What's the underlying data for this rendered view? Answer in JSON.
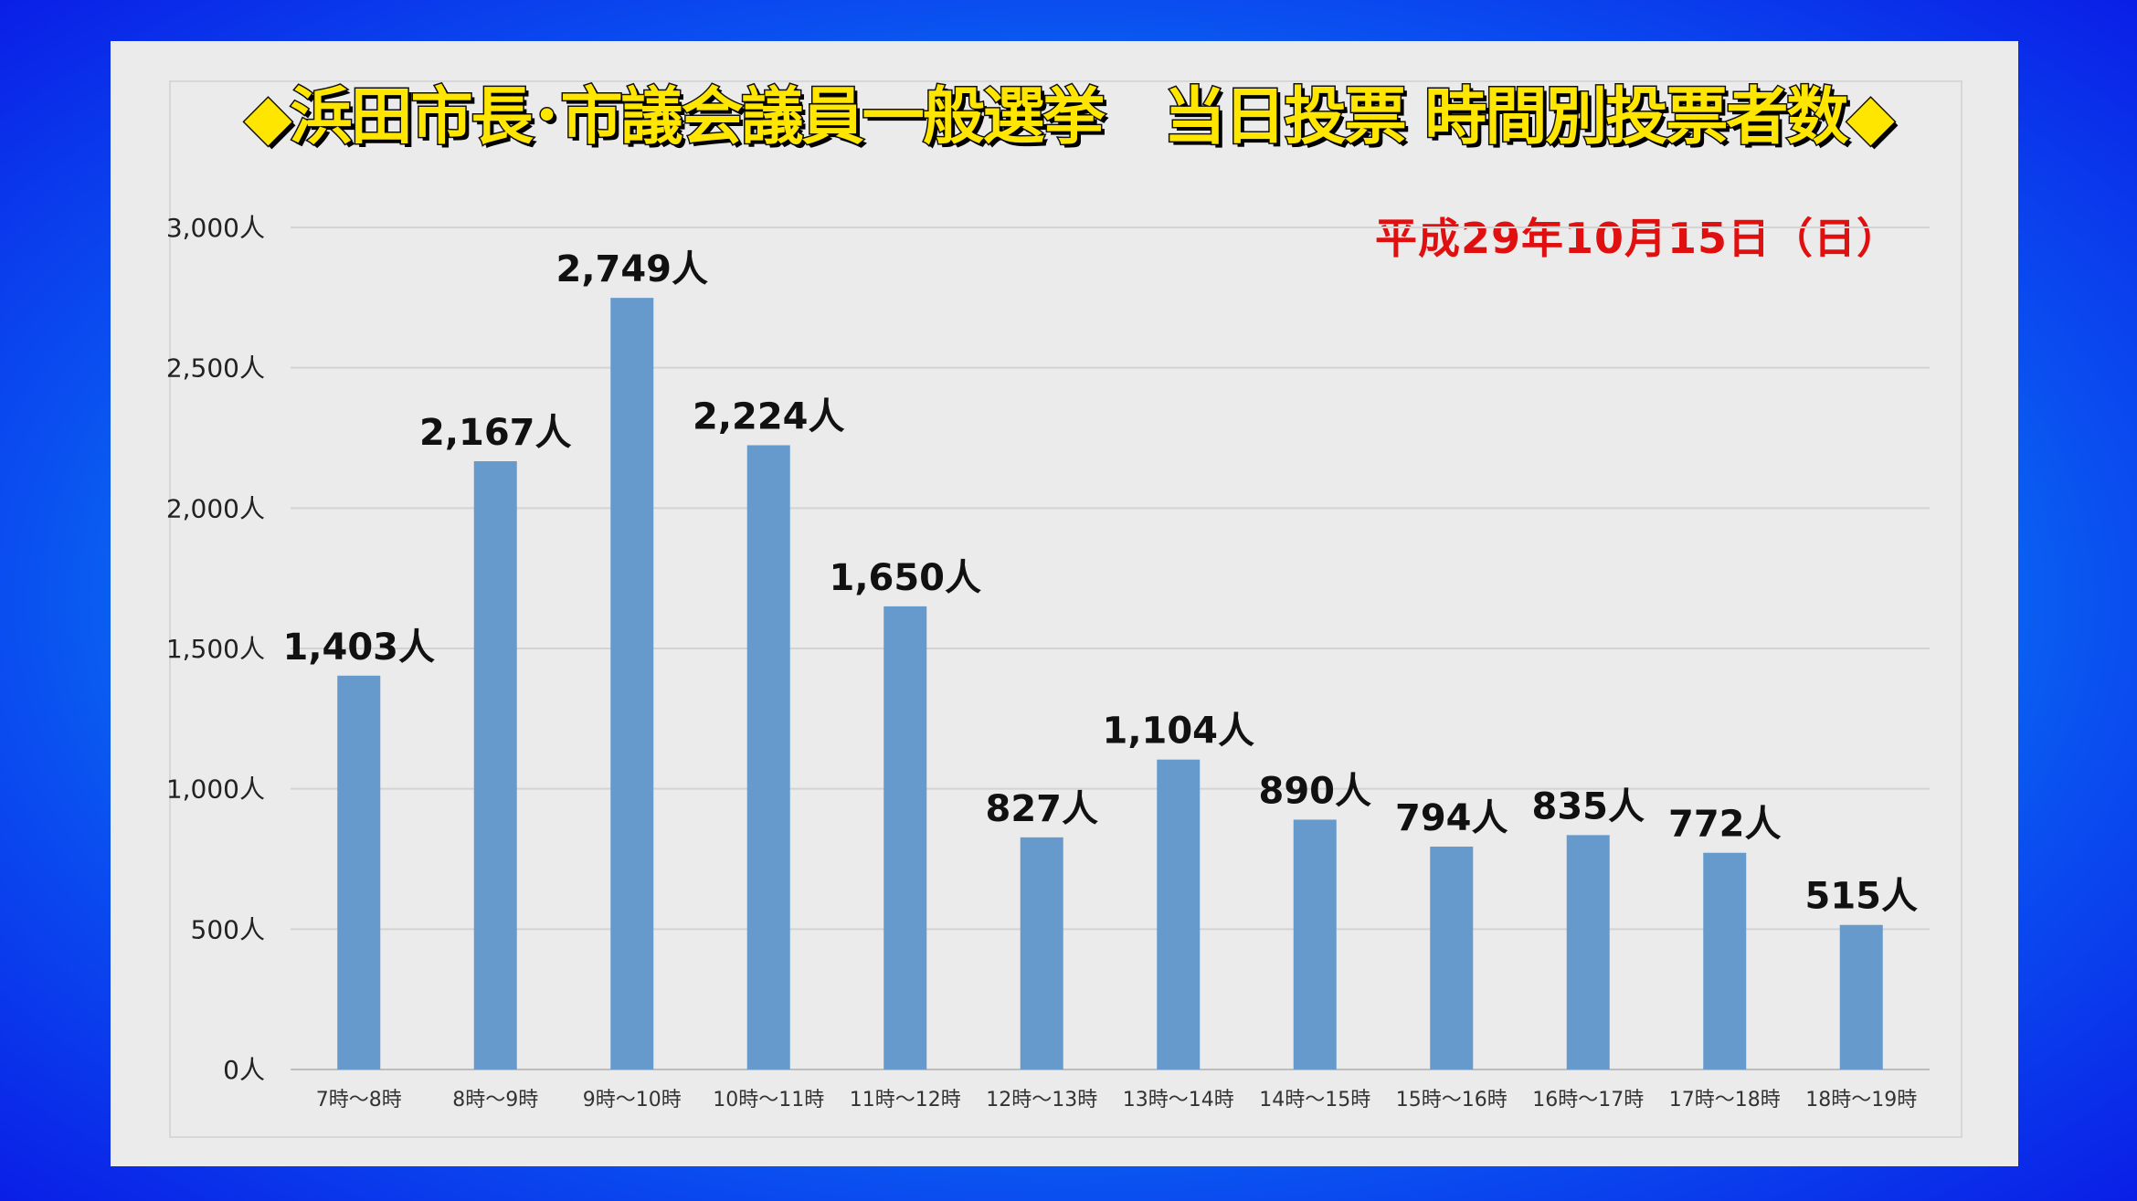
{
  "chart_data": {
    "type": "bar",
    "title": "◆浜田市長･市議会議員一般選挙　当日投票 時間別投票者数◆",
    "subtitle": "平成29年10月15日（日）",
    "xlabel": "",
    "ylabel": "",
    "categories": [
      "7時～8時",
      "8時～9時",
      "9時～10時",
      "10時～11時",
      "11時～12時",
      "12時～13時",
      "13時～14時",
      "14時～15時",
      "15時～16時",
      "16時～17時",
      "17時～18時",
      "18時～19時"
    ],
    "values": [
      1403,
      2167,
      2749,
      2224,
      1650,
      827,
      1104,
      890,
      794,
      835,
      772,
      515
    ],
    "data_labels": [
      "1,403人",
      "2,167人",
      "2,749人",
      "2,224人",
      "1,650人",
      "827人",
      "1,104人",
      "890人",
      "794人",
      "835人",
      "772人",
      "515人"
    ],
    "ylim": [
      0,
      3000
    ],
    "yticks": [
      0,
      500,
      1000,
      1500,
      2000,
      2500,
      3000
    ],
    "ytick_labels": [
      "0人",
      "500人",
      "1,000人",
      "1,500人",
      "2,000人",
      "2,500人",
      "3,000人"
    ],
    "grid": true,
    "bar_color": "#6699cc",
    "title_color": "#ffe600",
    "subtitle_color": "#e01010"
  }
}
